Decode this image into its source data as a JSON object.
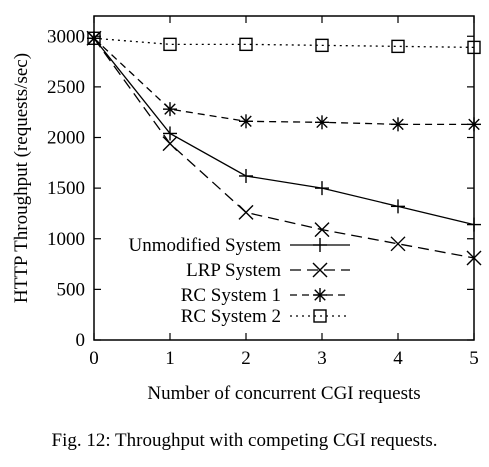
{
  "caption": "Fig. 12: Throughput with competing CGI requests.",
  "chart_data": {
    "type": "line",
    "title": "",
    "xlabel": "Number of concurrent CGI requests",
    "ylabel": "HTTP Throughput (requests/sec)",
    "x": [
      0,
      1,
      2,
      3,
      4,
      5
    ],
    "xlim": [
      0,
      5
    ],
    "ylim": [
      0,
      3200
    ],
    "xticks": [
      0,
      1,
      2,
      3,
      4,
      5
    ],
    "yticks": [
      0,
      500,
      1000,
      1500,
      2000,
      2500,
      3000
    ],
    "grid": false,
    "legend_position": "bottom-left",
    "series": [
      {
        "name": "Unmodified System",
        "marker": "plus",
        "line": "solid",
        "values": [
          2980,
          2040,
          1620,
          1500,
          1320,
          1140
        ]
      },
      {
        "name": "LRP System",
        "marker": "cross",
        "line": "dashed",
        "values": [
          2980,
          1940,
          1260,
          1090,
          950,
          810
        ]
      },
      {
        "name": "RC System 1",
        "marker": "star",
        "line": "dashed-short",
        "values": [
          2980,
          2280,
          2160,
          2150,
          2130,
          2130
        ]
      },
      {
        "name": "RC System 2",
        "marker": "square",
        "line": "dotted",
        "values": [
          2980,
          2920,
          2920,
          2910,
          2900,
          2890
        ]
      }
    ]
  }
}
